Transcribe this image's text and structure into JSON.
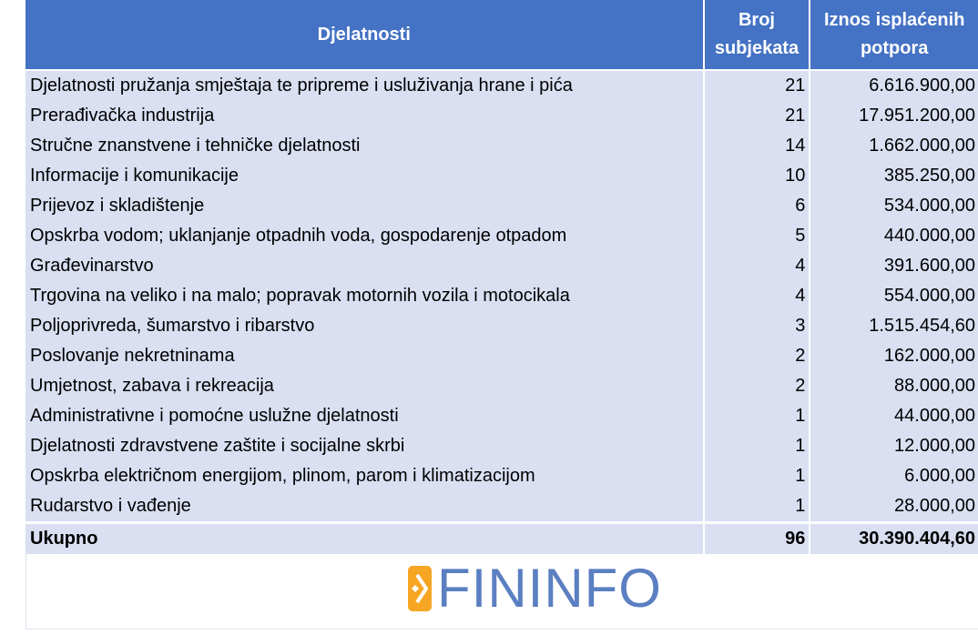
{
  "table": {
    "headers": [
      "Djelatnosti",
      "Broj subjekata",
      "Iznos isplaćenih potpora"
    ],
    "rows": [
      [
        "Djelatnosti pružanja smještaja te pripreme i usluživanja hrane i pića",
        "21",
        "6.616.900,00"
      ],
      [
        "Prerađivačka industrija",
        "21",
        "17.951.200,00"
      ],
      [
        "Stručne znanstvene i tehničke djelatnosti",
        "14",
        "1.662.000,00"
      ],
      [
        "Informacije i komunikacije",
        "10",
        "385.250,00"
      ],
      [
        "Prijevoz i skladištenje",
        "6",
        "534.000,00"
      ],
      [
        "Opskrba vodom; uklanjanje otpadnih voda, gospodarenje otpadom",
        "5",
        "440.000,00"
      ],
      [
        "Građevinarstvo",
        "4",
        "391.600,00"
      ],
      [
        "Trgovina na veliko i na malo; popravak motornih vozila i motocikala",
        "4",
        "554.000,00"
      ],
      [
        "Poljoprivreda, šumarstvo i ribarstvo",
        "3",
        "1.515.454,60"
      ],
      [
        "Poslovanje nekretninama",
        "2",
        "162.000,00"
      ],
      [
        "Umjetnost, zabava i rekreacija",
        "2",
        "88.000,00"
      ],
      [
        "Administrativne i pomoćne uslužne djelatnosti",
        "1",
        "44.000,00"
      ],
      [
        "Djelatnosti zdravstvene zaštite i socijalne skrbi",
        "1",
        "12.000,00"
      ],
      [
        "Opskrba električnom energijom, plinom, parom i klimatizacijom",
        "1",
        "6.000,00"
      ],
      [
        "Rudarstvo i vađenje",
        "1",
        "28.000,00"
      ]
    ],
    "total": [
      "Ukupno",
      "96",
      "30.390.404,60"
    ]
  },
  "logo": {
    "text": "FININFO",
    "icon": "chevron-right-icon"
  },
  "colors": {
    "header": "#4472c4",
    "row": "#dae0f2",
    "logo_blue": "#5b7fc1",
    "logo_orange": "#f6a623"
  }
}
